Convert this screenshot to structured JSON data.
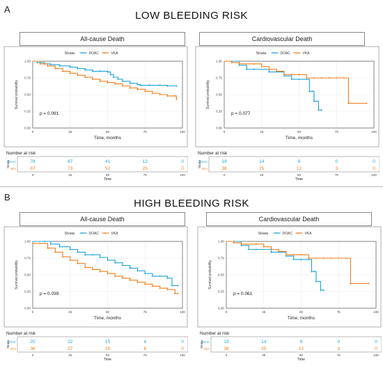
{
  "sections": [
    {
      "letter": "A",
      "title": "LOW BLEEDING RISK"
    },
    {
      "letter": "B",
      "title": "HIGH BLEEDING RISK"
    }
  ],
  "colors": {
    "doac": "#1aa3d9",
    "vka": "#f07d1a",
    "grid": "#e9e9e9",
    "frame": "#555555"
  },
  "labels": {
    "strata": "Strata",
    "ylabel": "Survival probability",
    "xlabel": "Time, months",
    "number_at_risk": "Number at risk",
    "time": "Time",
    "doac": "DOAC",
    "vka": "VKA"
  },
  "chart_data": [
    {
      "type": "line",
      "section": "A",
      "title": "All-cause Death",
      "xlabel": "Time, months",
      "ylabel": "Survival probability",
      "xlim": [
        0,
        100
      ],
      "ylim": [
        0,
        1
      ],
      "xticks": [
        "0",
        "25",
        "50",
        "75",
        "100"
      ],
      "yticks": [
        "0.00",
        "0.25",
        "0.50",
        "0.75",
        "1.00"
      ],
      "pvalue": "p = 0.091",
      "series": [
        {
          "name": "DOAC",
          "x": [
            0,
            3,
            8,
            12,
            18,
            25,
            30,
            35,
            40,
            45,
            50,
            52,
            54,
            57,
            60,
            65,
            70,
            72,
            78,
            85,
            90,
            96
          ],
          "y": [
            1.0,
            0.98,
            0.96,
            0.95,
            0.93,
            0.91,
            0.89,
            0.87,
            0.85,
            0.85,
            0.84,
            0.8,
            0.76,
            0.73,
            0.7,
            0.67,
            0.65,
            0.64,
            0.64,
            0.64,
            0.63,
            0.63
          ]
        },
        {
          "name": "VKA",
          "x": [
            0,
            5,
            10,
            15,
            20,
            25,
            30,
            35,
            40,
            45,
            50,
            55,
            60,
            65,
            70,
            75,
            80,
            85,
            90,
            95,
            96
          ],
          "y": [
            1.0,
            0.96,
            0.93,
            0.89,
            0.85,
            0.82,
            0.79,
            0.76,
            0.73,
            0.7,
            0.68,
            0.66,
            0.63,
            0.6,
            0.58,
            0.55,
            0.52,
            0.5,
            0.48,
            0.48,
            0.43
          ]
        }
      ],
      "risk_table": {
        "times": [
          "0",
          "25",
          "50",
          "75",
          "100"
        ],
        "rows": [
          {
            "name": "DOAC",
            "values": [
              "78",
              "67",
              "41",
              "12",
              "0"
            ]
          },
          {
            "name": "VKA",
            "values": [
              "87",
              "73",
              "52",
              "25",
              "0"
            ]
          }
        ]
      }
    },
    {
      "type": "line",
      "section": "A",
      "title": "Cardiovascular Death",
      "xlabel": "Time, months",
      "ylabel": "Survival probability",
      "xlim": [
        0,
        100
      ],
      "ylim": [
        0,
        1
      ],
      "xticks": [
        "0",
        "25",
        "50",
        "75",
        "100"
      ],
      "yticks": [
        "0.00",
        "0.25",
        "0.50",
        "0.75",
        "1.00"
      ],
      "pvalue": "p = 0.077",
      "series": [
        {
          "name": "DOAC",
          "x": [
            0,
            5,
            10,
            15,
            20,
            30,
            40,
            45,
            50,
            55,
            57,
            59,
            60,
            63,
            65
          ],
          "y": [
            1.0,
            1.0,
            0.94,
            0.88,
            0.88,
            0.84,
            0.78,
            0.73,
            0.73,
            0.73,
            0.55,
            0.55,
            0.4,
            0.27,
            0.27
          ]
        },
        {
          "name": "VKA",
          "x": [
            0,
            5,
            10,
            20,
            25,
            30,
            35,
            40,
            45,
            50,
            55,
            60,
            65,
            70,
            75,
            80,
            83,
            95
          ],
          "y": [
            1.0,
            0.98,
            0.96,
            0.96,
            0.92,
            0.88,
            0.85,
            0.8,
            0.8,
            0.8,
            0.75,
            0.75,
            0.75,
            0.75,
            0.75,
            0.75,
            0.37,
            0.37
          ]
        }
      ],
      "risk_table": {
        "times": [
          "0",
          "25",
          "50",
          "75",
          "100"
        ],
        "rows": [
          {
            "name": "DOAC",
            "values": [
              "19",
              "14",
              "8",
              "0",
              "0"
            ]
          },
          {
            "name": "VKA",
            "values": [
              "38",
              "25",
              "12",
              "3",
              "0"
            ]
          }
        ]
      }
    },
    {
      "type": "line",
      "section": "B",
      "title": "All-cause Death",
      "xlabel": "Time, months",
      "ylabel": "Survival probability",
      "xlim": [
        0,
        100
      ],
      "ylim": [
        0,
        1
      ],
      "xticks": [
        "0",
        "25",
        "50",
        "75",
        "100"
      ],
      "yticks": [
        "0.00",
        "0.25",
        "0.50",
        "0.75",
        "1.00"
      ],
      "pvalue": "p = 0.039",
      "series": [
        {
          "name": "DOAC",
          "x": [
            0,
            8,
            12,
            18,
            25,
            30,
            35,
            40,
            45,
            50,
            55,
            60,
            65,
            70,
            75,
            80,
            85,
            90,
            93,
            97
          ],
          "y": [
            1.0,
            1.0,
            0.96,
            0.92,
            0.88,
            0.84,
            0.8,
            0.8,
            0.76,
            0.72,
            0.68,
            0.64,
            0.6,
            0.56,
            0.52,
            0.48,
            0.48,
            0.45,
            0.34,
            0.34
          ]
        },
        {
          "name": "VKA",
          "x": [
            0,
            5,
            10,
            15,
            20,
            25,
            30,
            35,
            40,
            45,
            50,
            55,
            60,
            65,
            70,
            75,
            80,
            85,
            90,
            95,
            97
          ],
          "y": [
            0.97,
            0.97,
            0.9,
            0.84,
            0.77,
            0.72,
            0.67,
            0.61,
            0.58,
            0.55,
            0.52,
            0.48,
            0.45,
            0.42,
            0.39,
            0.36,
            0.33,
            0.3,
            0.28,
            0.22,
            0.22
          ]
        }
      ],
      "risk_table": {
        "times": [
          "0",
          "25",
          "50",
          "75",
          "100"
        ],
        "rows": [
          {
            "name": "DOAC",
            "values": [
              "25",
              "22",
              "15",
              "4",
              "0"
            ]
          },
          {
            "name": "VKA",
            "values": [
              "36",
              "27",
              "18",
              "8",
              "0"
            ]
          }
        ]
      }
    },
    {
      "type": "line",
      "section": "B",
      "title": "Cardiovascular Death",
      "xlabel": "Time, months",
      "ylabel": "Survival probability",
      "xlim": [
        0,
        100
      ],
      "ylim": [
        0,
        1
      ],
      "xticks": [
        "0",
        "25",
        "50",
        "75",
        "100"
      ],
      "yticks": [
        "0.00",
        "0.25",
        "0.50",
        "0.75",
        "1.00"
      ],
      "pvalue": "p = 0.061",
      "series": [
        {
          "name": "DOAC",
          "x": [
            0,
            5,
            10,
            15,
            20,
            30,
            40,
            45,
            50,
            55,
            57,
            59,
            60,
            63,
            65
          ],
          "y": [
            1.0,
            1.0,
            0.94,
            0.88,
            0.88,
            0.84,
            0.78,
            0.73,
            0.73,
            0.73,
            0.55,
            0.55,
            0.4,
            0.27,
            0.27
          ]
        },
        {
          "name": "VKA",
          "x": [
            0,
            5,
            10,
            20,
            25,
            30,
            35,
            40,
            45,
            50,
            55,
            60,
            65,
            70,
            75,
            80,
            83,
            95
          ],
          "y": [
            1.0,
            0.98,
            0.96,
            0.96,
            0.92,
            0.88,
            0.85,
            0.8,
            0.8,
            0.8,
            0.75,
            0.75,
            0.75,
            0.75,
            0.75,
            0.75,
            0.37,
            0.37
          ]
        }
      ],
      "risk_table": {
        "times": [
          "0",
          "25",
          "50",
          "75",
          "100"
        ],
        "rows": [
          {
            "name": "DOAC",
            "values": [
              "19",
              "14",
              "8",
              "0",
              "0"
            ]
          },
          {
            "name": "VKA",
            "values": [
              "38",
              "25",
              "12",
              "3",
              "0"
            ]
          }
        ]
      }
    }
  ]
}
